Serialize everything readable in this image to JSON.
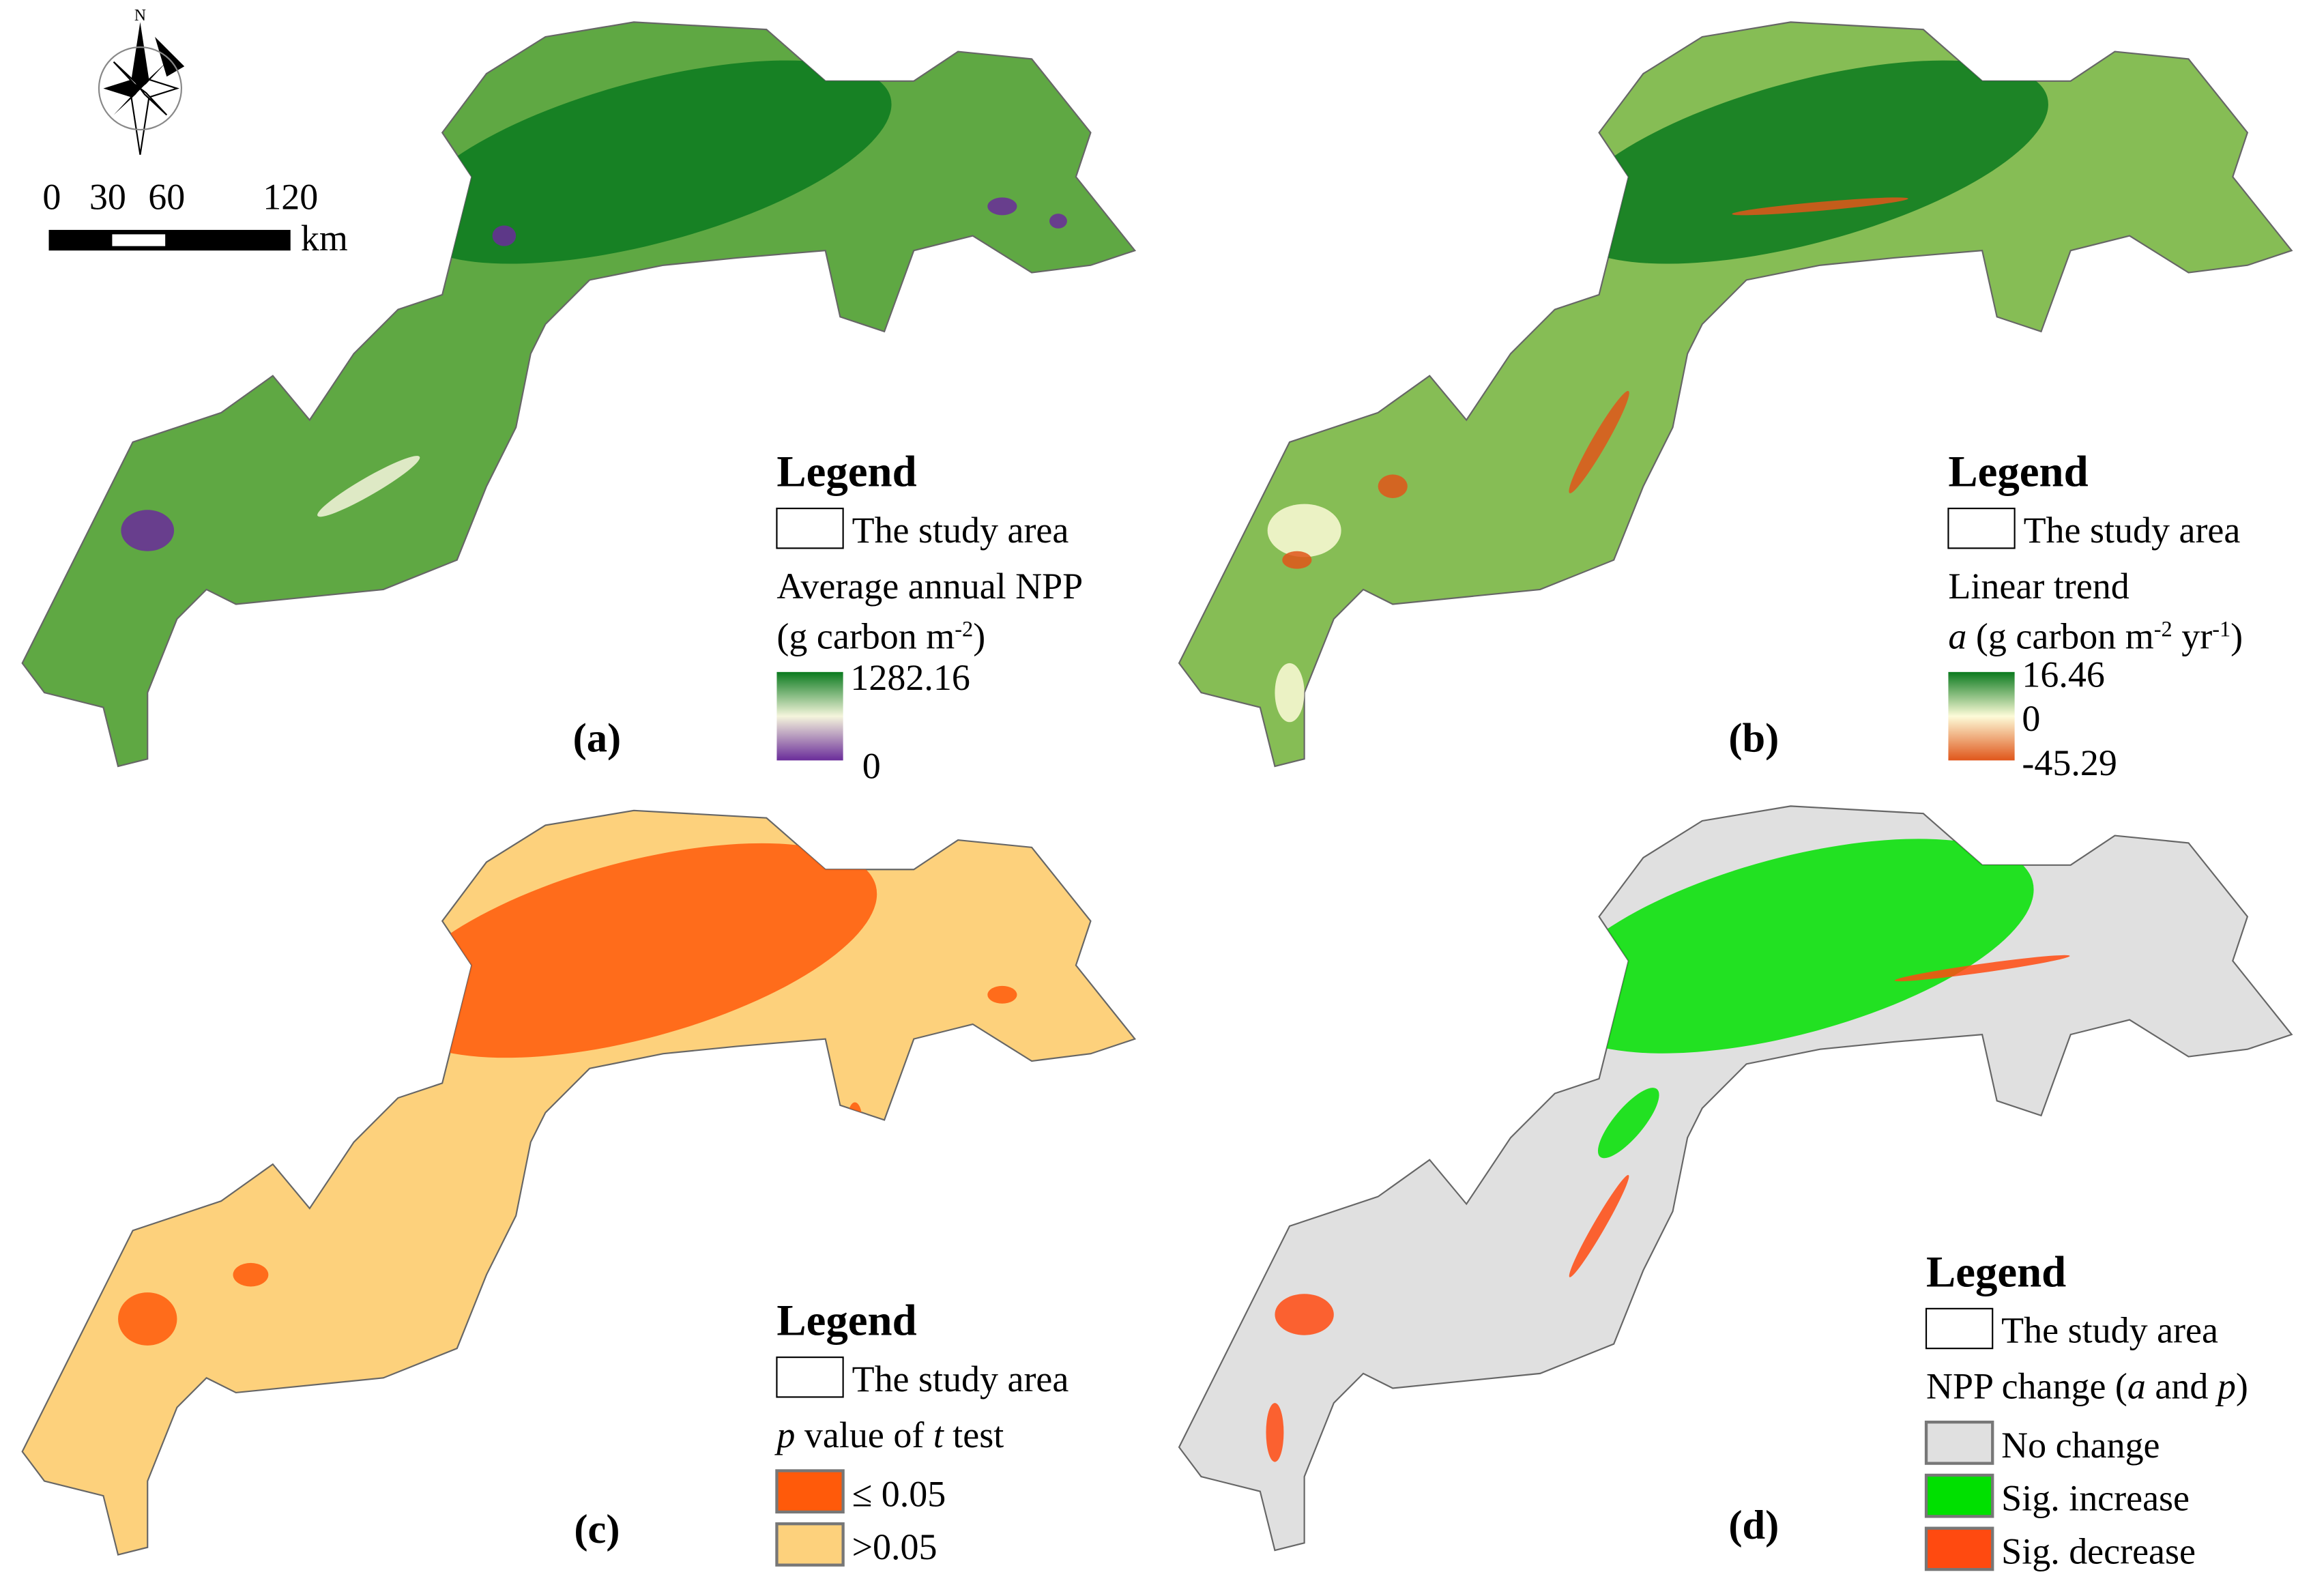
{
  "north_label": "N",
  "scale_bar": {
    "labels": [
      "0",
      "30",
      "60",
      "120"
    ],
    "unit": "km"
  },
  "panels": [
    {
      "label": "(a)",
      "legend_title": "Legend",
      "boundary_label": "The study area",
      "map_color": "#5fa843",
      "variable": [
        {
          "text": "Average annual NPP"
        }
      ],
      "unit": [
        {
          "text": "(g carbon m"
        },
        {
          "text": "-2",
          "style": "sup"
        },
        {
          "text": ")"
        }
      ],
      "colorbar": {
        "colors": [
          "#0a7a1e",
          "#f5f5dc",
          "#6a2c9a"
        ],
        "labels": [
          "1282.16",
          "0"
        ]
      }
    },
    {
      "label": "(b)",
      "legend_title": "Legend",
      "boundary_label": "The study area",
      "map_color": "#86bd55",
      "variable": [
        {
          "text": "Linear trend"
        }
      ],
      "unit": [
        {
          "text": "a",
          "style": "italic"
        },
        {
          "text": " (g carbon m"
        },
        {
          "text": "-2",
          "style": "sup"
        },
        {
          "text": " yr"
        },
        {
          "text": "-1",
          "style": "sup"
        },
        {
          "text": ")"
        }
      ],
      "colorbar": {
        "colors": [
          "#0a7a1e",
          "#fdfbd8",
          "#e0561a"
        ],
        "labels": [
          "16.46",
          "0",
          "-45.29"
        ]
      }
    },
    {
      "label": "(c)",
      "legend_title": "Legend",
      "boundary_label": "The study area",
      "map_color": "#fdd17c",
      "variable": [
        {
          "text": "p",
          "style": "italic"
        },
        {
          "text": " value of "
        },
        {
          "text": "t",
          "style": "italic"
        },
        {
          "text": " test"
        }
      ],
      "classes": [
        {
          "label": "≤ 0.05",
          "color": "#ff5a0a"
        },
        {
          "label": ">0.05",
          "color": "#fdd17c"
        }
      ]
    },
    {
      "label": "(d)",
      "legend_title": "Legend",
      "boundary_label": "The study area",
      "map_color": "#e0e0e0",
      "variable": [
        {
          "text": "NPP change ("
        },
        {
          "text": "a",
          "style": "italic"
        },
        {
          "text": " and "
        },
        {
          "text": "p",
          "style": "italic"
        },
        {
          "text": ")"
        }
      ],
      "classes": [
        {
          "label": "No change",
          "color": "#e0e0e0"
        },
        {
          "label": "Sig. increase",
          "color": "#00e000"
        },
        {
          "label": "Sig. decrease",
          "color": "#ff4a10"
        }
      ]
    }
  ]
}
